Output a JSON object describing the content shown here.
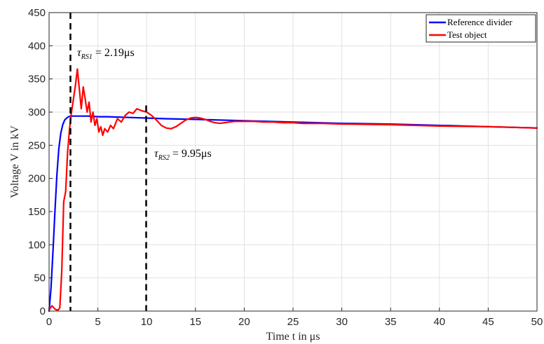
{
  "chart_data": {
    "type": "line",
    "title": "",
    "xlabel": "Time t in μs",
    "ylabel": "Voltage V in kV",
    "xlim": [
      0,
      50
    ],
    "ylim": [
      0,
      450
    ],
    "xticks": [
      0,
      5,
      10,
      15,
      20,
      25,
      30,
      35,
      40,
      45,
      50
    ],
    "yticks": [
      0,
      50,
      100,
      150,
      200,
      250,
      300,
      350,
      400,
      450
    ],
    "grid": true,
    "legend_position": "top-right",
    "series": [
      {
        "name": "Reference divider",
        "color": "#0000ff",
        "x": [
          0,
          0.2,
          0.4,
          0.6,
          0.8,
          1.0,
          1.2,
          1.4,
          1.6,
          1.8,
          2.0,
          2.2,
          2.5,
          3,
          4,
          5,
          6,
          8,
          10,
          12,
          15,
          20,
          25,
          30,
          35,
          40,
          45,
          50
        ],
        "y": [
          0,
          35,
          90,
          150,
          205,
          245,
          268,
          281,
          288,
          291,
          293,
          294,
          294,
          294,
          294,
          293,
          293,
          292,
          291,
          290,
          289,
          287,
          285,
          283,
          282,
          280,
          278,
          276
        ]
      },
      {
        "name": "Test object",
        "color": "#ff0000",
        "x": [
          0,
          0.3,
          0.6,
          0.9,
          1.1,
          1.3,
          1.5,
          1.7,
          1.9,
          2.1,
          2.3,
          2.5,
          2.7,
          2.9,
          3.1,
          3.3,
          3.5,
          3.7,
          3.9,
          4.1,
          4.3,
          4.5,
          4.7,
          4.9,
          5.1,
          5.3,
          5.5,
          5.7,
          6.0,
          6.3,
          6.6,
          7.0,
          7.4,
          7.8,
          8.2,
          8.6,
          9.0,
          9.5,
          10.0,
          10.5,
          11.0,
          11.5,
          12.0,
          12.5,
          13.0,
          13.5,
          14.0,
          14.5,
          15.0,
          15.5,
          16.0,
          16.5,
          17.0,
          17.5,
          18.0,
          18.5,
          19.0,
          19.5,
          20.0,
          21,
          22,
          23,
          24,
          25,
          26,
          28,
          30,
          35,
          40,
          45,
          50
        ],
        "y": [
          2,
          8,
          3,
          1,
          5,
          60,
          165,
          180,
          240,
          275,
          300,
          320,
          340,
          365,
          335,
          305,
          338,
          320,
          300,
          315,
          285,
          300,
          280,
          290,
          270,
          278,
          265,
          275,
          270,
          280,
          275,
          290,
          285,
          295,
          300,
          298,
          305,
          302,
          300,
          295,
          288,
          280,
          276,
          275,
          278,
          283,
          288,
          291,
          292,
          291,
          289,
          286,
          284,
          283,
          284,
          285,
          286,
          286,
          286,
          286,
          285,
          285,
          284,
          284,
          283,
          283,
          282,
          281,
          279,
          278,
          276
        ]
      }
    ],
    "annotations": [
      {
        "symbol": "τ",
        "subscript": "RS1",
        "value_text": " = 2.19μs",
        "x": 2.19,
        "vline": true
      },
      {
        "symbol": "τ",
        "subscript": "RS2",
        "value_text": " = 9.95μs",
        "x": 9.95,
        "vline": true
      }
    ]
  }
}
